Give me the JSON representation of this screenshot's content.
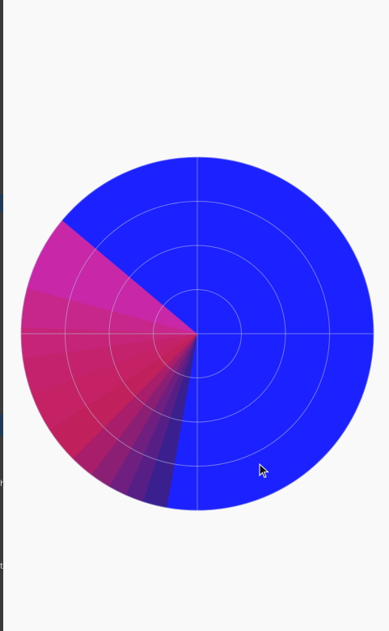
{
  "window": {
    "edge_text_1": "h",
    "edge_text_2": "t"
  },
  "chart_data": {
    "type": "polar-pie",
    "grid": true,
    "radial_rings": 4,
    "background_color": "#f9f9f9",
    "grid_color": "#b9bde0",
    "slices": [
      {
        "start_deg": -90,
        "end_deg": 100,
        "color": "#1c22ff"
      },
      {
        "start_deg": 100,
        "end_deg": 108,
        "color": "#3a208f"
      },
      {
        "start_deg": 108,
        "end_deg": 114,
        "color": "#571f86"
      },
      {
        "start_deg": 114,
        "end_deg": 120,
        "color": "#6e1f7f"
      },
      {
        "start_deg": 120,
        "end_deg": 127,
        "color": "#8a1f74"
      },
      {
        "start_deg": 127,
        "end_deg": 135,
        "color": "#a81e6a"
      },
      {
        "start_deg": 135,
        "end_deg": 147,
        "color": "#c0215c"
      },
      {
        "start_deg": 147,
        "end_deg": 160,
        "color": "#c42265"
      },
      {
        "start_deg": 160,
        "end_deg": 172,
        "color": "#c4226d"
      },
      {
        "start_deg": 172,
        "end_deg": 182,
        "color": "#c62478"
      },
      {
        "start_deg": 182,
        "end_deg": 195,
        "color": "#c7268a"
      },
      {
        "start_deg": 195,
        "end_deg": 220,
        "color": "#c828a8"
      },
      {
        "start_deg": 220,
        "end_deg": 270,
        "color": "#1c22ff"
      }
    ]
  }
}
